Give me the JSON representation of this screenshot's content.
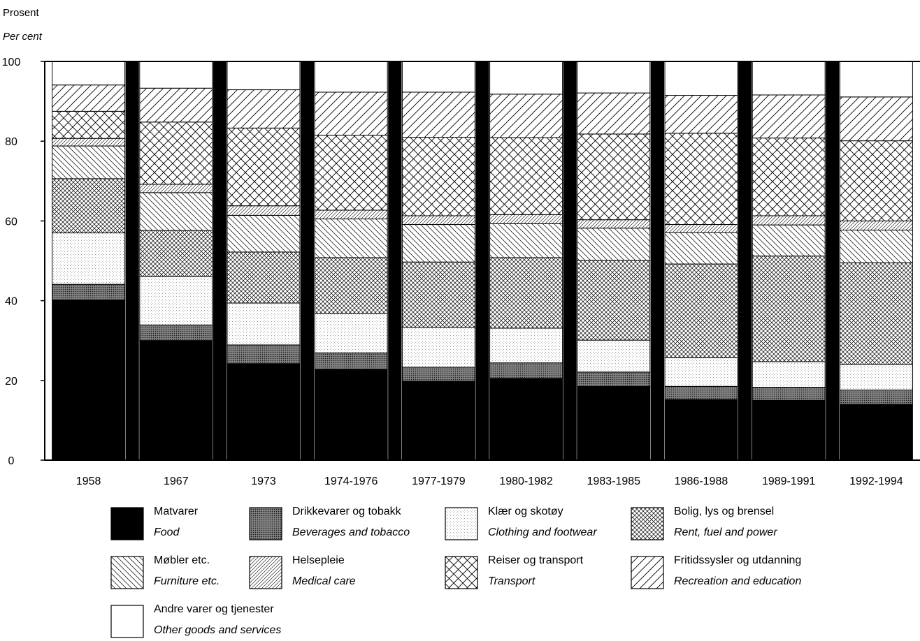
{
  "y_title_no": "Prosent",
  "y_title_en": "Per cent",
  "chart_data": {
    "type": "bar",
    "stacked": true,
    "ylim": [
      0,
      100
    ],
    "yticks": [
      0,
      20,
      40,
      60,
      80,
      100
    ],
    "categories": [
      "1958",
      "1967",
      "1973",
      "1974-1976",
      "1977-1979",
      "1980-1982",
      "1983-1985",
      "1986-1988",
      "1989-1991",
      "1992-1994"
    ],
    "series": [
      {
        "name": "Matvarer",
        "name_en": "Food",
        "pattern": "solid-black",
        "values": [
          40.2,
          30.0,
          24.2,
          22.8,
          19.8,
          20.5,
          18.5,
          15.2,
          15.0,
          14.0
        ]
      },
      {
        "name": "Drikkevarer og tobakk",
        "name_en": "Beverages and tobacco",
        "pattern": "dark-dots",
        "values": [
          3.9,
          3.9,
          4.7,
          4.1,
          3.5,
          3.9,
          3.6,
          3.3,
          3.3,
          3.6
        ]
      },
      {
        "name": "Klær og skotøy",
        "name_en": "Clothing and footwear",
        "pattern": "light-dots",
        "values": [
          12.9,
          12.2,
          10.5,
          9.9,
          10.0,
          8.7,
          8.0,
          7.2,
          6.4,
          6.4
        ]
      },
      {
        "name": "Bolig, lys og brensel",
        "name_en": "Rent, fuel and power",
        "pattern": "fine-crosshatch",
        "values": [
          13.6,
          11.5,
          12.8,
          14.0,
          16.4,
          17.7,
          20.0,
          23.5,
          26.5,
          25.5
        ]
      },
      {
        "name": "Møbler etc.",
        "name_en": "Furniture etc.",
        "pattern": "back-diagonal",
        "values": [
          8.2,
          9.5,
          9.2,
          9.7,
          9.4,
          8.5,
          8.1,
          7.9,
          7.8,
          8.2
        ]
      },
      {
        "name": "Helsepleie",
        "name_en": "Medical care",
        "pattern": "fine-diagonal",
        "values": [
          1.9,
          2.1,
          2.4,
          2.2,
          2.2,
          2.3,
          2.1,
          2.0,
          2.3,
          2.3
        ]
      },
      {
        "name": "Reiser og transport",
        "name_en": "Transport",
        "pattern": "coarse-crosshatch",
        "values": [
          6.8,
          15.6,
          19.5,
          18.8,
          19.7,
          19.3,
          21.5,
          22.9,
          19.5,
          20.1
        ]
      },
      {
        "name": "Fritidssysler og utdanning",
        "name_en": "Recreation and education",
        "pattern": "coarse-diagonal",
        "values": [
          6.6,
          8.5,
          9.6,
          10.8,
          11.3,
          10.9,
          10.3,
          9.5,
          10.8,
          11.0
        ]
      },
      {
        "name": "Andre varer og tjenester",
        "name_en": "Other goods and services",
        "pattern": "white",
        "values": [
          5.9,
          6.7,
          7.1,
          7.7,
          7.7,
          8.2,
          7.9,
          8.5,
          8.4,
          8.9
        ]
      }
    ]
  }
}
